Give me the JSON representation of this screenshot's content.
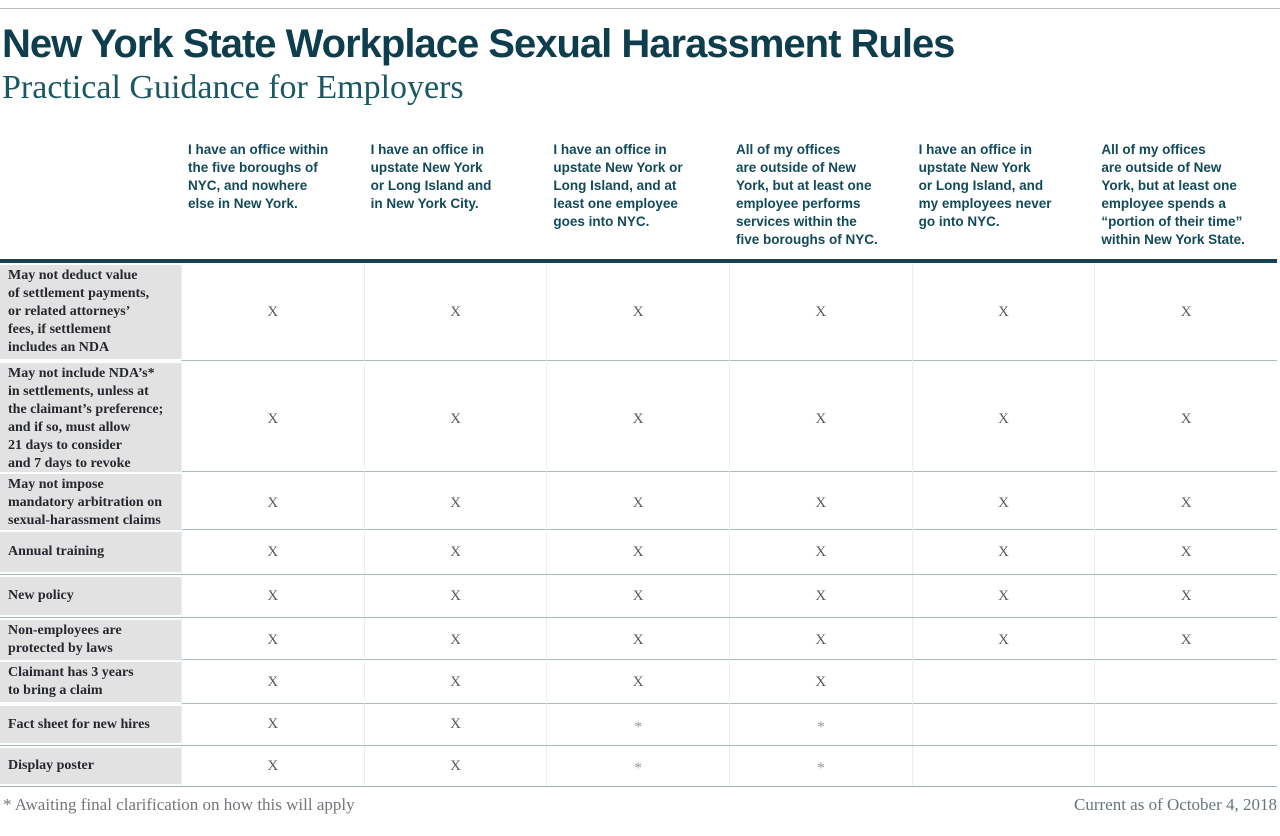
{
  "page": {
    "title": "New York State Workplace Sexual Harassment Rules",
    "subtitle": "Practical Guidance for Employers"
  },
  "table": {
    "columns": [
      "I have an office within\nthe five boroughs of\nNYC, and nowhere\nelse in New York.",
      "I have an office in\nupstate New York\nor Long Island and\nin New York City.",
      "I have an office in\nupstate New York or\nLong Island, and at\nleast one employee\ngoes into NYC.",
      "All of my offices\nare outside of New\nYork, but at least one\nemployee performs\nservices within the\nfive boroughs of NYC.",
      "I have an office in\nupstate New York\nor Long Island, and\nmy employees never\ngo into NYC.",
      "All of my offices\nare outside of New\nYork, but at least one\nemployee spends a\n“portion of their time”\nwithin New York State."
    ],
    "rows": [
      {
        "label": "May not deduct value\nof settlement payments,\nor related attorneys’\nfees, if settlement\nincludes an NDA",
        "cells": [
          "X",
          "X",
          "X",
          "X",
          "X",
          "X"
        ],
        "height": 97
      },
      {
        "label": "May not include NDA’s*\nin settlements, unless at\nthe claimant’s preference;\nand if so, must allow\n21 days to consider\nand 7 days to revoke",
        "cells": [
          "X",
          "X",
          "X",
          "X",
          "X",
          "X"
        ],
        "height": 111
      },
      {
        "label": "May not impose\nmandatory arbitration on\nsexual-harassment claims",
        "cells": [
          "X",
          "X",
          "X",
          "X",
          "X",
          "X"
        ],
        "height": 58
      },
      {
        "label": "Annual training",
        "cells": [
          "X",
          "X",
          "X",
          "X",
          "X",
          "X"
        ],
        "height": 45
      },
      {
        "label": "New policy",
        "cells": [
          "X",
          "X",
          "X",
          "X",
          "X",
          "X"
        ],
        "height": 43
      },
      {
        "label": "Non-employees are\nprotected by laws",
        "cells": [
          "X",
          "X",
          "X",
          "X",
          "X",
          "X"
        ],
        "height": 42
      },
      {
        "label": "Claimant has 3 years\nto bring a claim",
        "cells": [
          "X",
          "X",
          "X",
          "X",
          "",
          ""
        ],
        "height": 44
      },
      {
        "label": "Fact sheet for new hires",
        "cells": [
          "X",
          "X",
          "*",
          "*",
          "",
          ""
        ],
        "height": 42
      },
      {
        "label": "Display poster",
        "cells": [
          "X",
          "X",
          "*",
          "*",
          "",
          ""
        ],
        "height": 41
      }
    ]
  },
  "footer": {
    "footnote": "* Awaiting final clarification on how this will apply",
    "current_as_of": "Current as of October 4, 2018"
  },
  "colors": {
    "title_text": "#0e3e4e",
    "subtitle_text": "#1a5863",
    "header_text": "#134a59",
    "thick_rule": "#16414f",
    "label_background": "#e2e2e2",
    "label_text": "#26282f",
    "row_line": "#aabcba",
    "mark_x": "#58595c",
    "footer_text": "#74767b"
  }
}
